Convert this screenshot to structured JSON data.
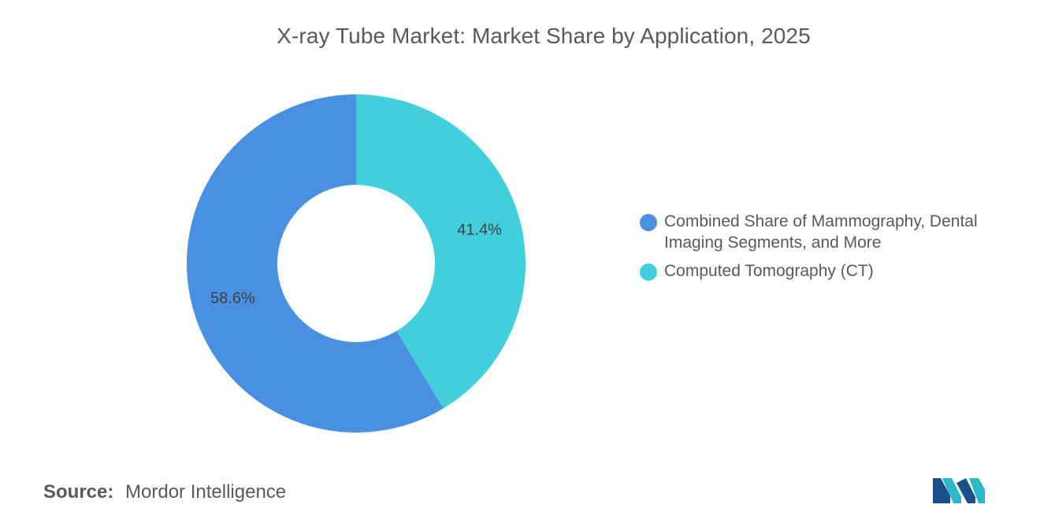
{
  "chart_data": {
    "type": "pie",
    "donut": true,
    "title": "X-ray Tube Market: Market Share by Application, 2025",
    "slices": [
      {
        "label": "Computed Tomography (CT)",
        "value": 41.4,
        "value_label": "41.4%",
        "color": "#41D0DB"
      },
      {
        "label": "Combined Share of Mammography, Dental Imaging Segments, and More",
        "value": 58.6,
        "value_label": "58.6%",
        "color": "#4A90E2"
      }
    ],
    "legend": {
      "placement": "right",
      "entries": [
        {
          "label": "Combined Share of Mammography, Dental Imaging Segments, and More",
          "color": "#4A90E2"
        },
        {
          "label": "Computed Tomography (CT)",
          "color": "#41D0DB"
        }
      ]
    }
  },
  "footer": {
    "source_label": "Source:",
    "source_value": "Mordor Intelligence"
  },
  "logo": {
    "icon": "mordor-intelligence-logo-icon",
    "colors": [
      "#1B4F8A",
      "#2BB9C9"
    ]
  }
}
